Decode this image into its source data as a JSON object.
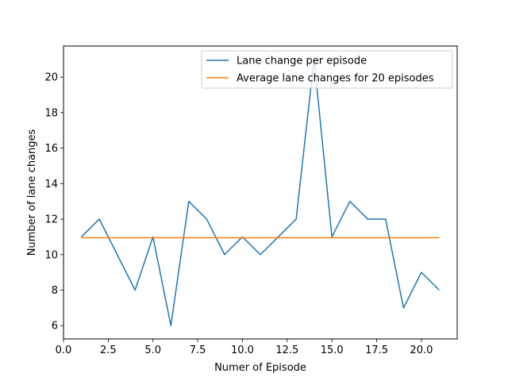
{
  "chart_data": {
    "type": "line",
    "title": "",
    "xlabel": "Numer of Episode",
    "ylabel": "Number of lane changes",
    "xlim": [
      0,
      22
    ],
    "ylim": [
      5.25,
      21.75
    ],
    "xticks": [
      0.0,
      2.5,
      5.0,
      7.5,
      10.0,
      12.5,
      15.0,
      17.5,
      20.0
    ],
    "xtick_labels": [
      "0.0",
      "2.5",
      "5.0",
      "7.5",
      "10.0",
      "12.5",
      "15.0",
      "17.5",
      "20.0"
    ],
    "yticks": [
      6,
      8,
      10,
      12,
      14,
      16,
      18,
      20
    ],
    "ytick_labels": [
      "6",
      "8",
      "10",
      "12",
      "14",
      "16",
      "18",
      "20"
    ],
    "grid": false,
    "legend_position": "top-right",
    "series": [
      {
        "name": "Lane change per episode",
        "color": "#1f77b4",
        "x": [
          1,
          2,
          3,
          4,
          5,
          6,
          7,
          8,
          9,
          10,
          11,
          12,
          13,
          14,
          15,
          16,
          17,
          18,
          19,
          20,
          21
        ],
        "y": [
          11,
          12,
          10,
          8,
          11,
          6,
          13,
          12,
          10,
          11,
          10,
          11,
          12,
          21,
          11,
          13,
          12,
          12,
          7,
          9,
          8
        ]
      },
      {
        "name": "Average lane changes for 20 episodes",
        "color": "#ff7f0e",
        "x": [
          1,
          21
        ],
        "y": [
          10.95,
          10.95
        ]
      }
    ]
  }
}
